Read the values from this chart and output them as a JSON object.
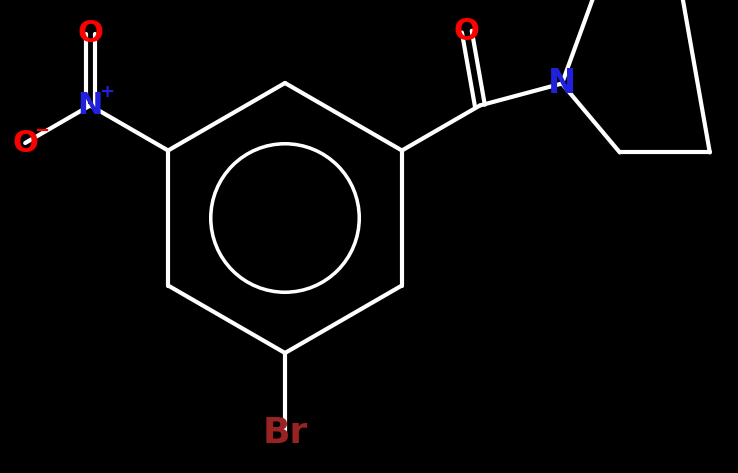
{
  "background": "#000000",
  "bond_color": "#ffffff",
  "bond_lw": 3.0,
  "atom_colors": {
    "O": "#ff0000",
    "N": "#2020dd",
    "Br": "#992222",
    "C": "#ffffff"
  },
  "font_size_atom": 22,
  "font_size_charge": 13,
  "font_size_br": 26,
  "font_size_N_pyrl": 24
}
